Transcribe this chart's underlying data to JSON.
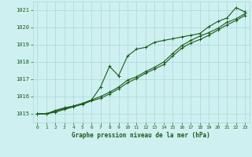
{
  "title": "Graphe pression niveau de la mer (hPa)",
  "bg_color": "#cff0f0",
  "grid_color": "#a8d8d8",
  "line_color": "#1a5c1a",
  "xlim": [
    -0.5,
    23.5
  ],
  "ylim": [
    1014.5,
    1021.5
  ],
  "yticks": [
    1015,
    1016,
    1017,
    1018,
    1019,
    1020,
    1021
  ],
  "xticks": [
    0,
    1,
    2,
    3,
    4,
    5,
    6,
    7,
    8,
    9,
    10,
    11,
    12,
    13,
    14,
    15,
    16,
    17,
    18,
    19,
    20,
    21,
    22,
    23
  ],
  "line1_x": [
    0,
    1,
    2,
    3,
    4,
    5,
    6,
    7,
    8,
    9,
    10,
    11,
    12,
    13,
    14,
    15,
    16,
    17,
    18,
    19,
    20,
    21,
    22,
    23
  ],
  "line1_y": [
    1015.0,
    1015.0,
    1015.2,
    1015.35,
    1015.45,
    1015.6,
    1015.8,
    1016.55,
    1017.75,
    1017.2,
    1018.35,
    1018.75,
    1018.85,
    1019.15,
    1019.25,
    1019.35,
    1019.45,
    1019.55,
    1019.65,
    1020.05,
    1020.35,
    1020.55,
    1021.15,
    1020.9
  ],
  "line2_x": [
    0,
    1,
    2,
    3,
    4,
    5,
    6,
    7,
    8,
    9,
    10,
    11,
    12,
    13,
    14,
    15,
    16,
    17,
    18,
    19,
    20,
    21,
    22,
    23
  ],
  "line2_y": [
    1015.0,
    1015.0,
    1015.15,
    1015.3,
    1015.45,
    1015.6,
    1015.8,
    1016.0,
    1016.25,
    1016.55,
    1016.95,
    1017.15,
    1017.45,
    1017.7,
    1018.0,
    1018.5,
    1018.95,
    1019.25,
    1019.5,
    1019.7,
    1019.95,
    1020.3,
    1020.5,
    1020.8
  ],
  "line3_x": [
    0,
    1,
    2,
    3,
    4,
    5,
    6,
    7,
    8,
    9,
    10,
    11,
    12,
    13,
    14,
    15,
    16,
    17,
    18,
    19,
    20,
    21,
    22,
    23
  ],
  "line3_y": [
    1015.0,
    1015.0,
    1015.1,
    1015.25,
    1015.4,
    1015.55,
    1015.75,
    1015.9,
    1016.15,
    1016.45,
    1016.8,
    1017.05,
    1017.35,
    1017.6,
    1017.85,
    1018.35,
    1018.8,
    1019.1,
    1019.3,
    1019.55,
    1019.85,
    1020.15,
    1020.4,
    1020.7
  ]
}
